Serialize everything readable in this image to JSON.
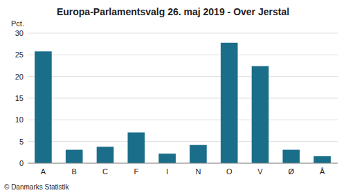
{
  "chart_data": {
    "type": "bar",
    "title": "Europa-Parlamentsvalg 26. maj 2019 - Over Jerstal",
    "ylabel": "Pct.",
    "footer": "© Danmarks Statistik",
    "categories": [
      "A",
      "B",
      "C",
      "F",
      "I",
      "N",
      "O",
      "V",
      "Ø",
      "Å"
    ],
    "values": [
      25.8,
      3.1,
      3.8,
      7.1,
      2.2,
      4.2,
      27.8,
      22.4,
      3.1,
      1.6
    ],
    "color": "#1a6e8a",
    "ylim": [
      0,
      30
    ],
    "yticks": [
      0,
      5,
      10,
      15,
      20,
      25,
      30
    ],
    "grid": true
  }
}
